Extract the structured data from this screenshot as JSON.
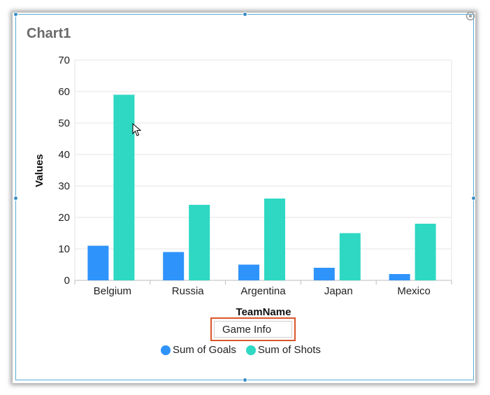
{
  "chart_title": "Chart1",
  "legend_title": "Game Info",
  "colors": {
    "goals": "#2e93fa",
    "shots": "#2ed8c3",
    "grid": "#e6e6e6",
    "selection": "#d9562b"
  },
  "chart_data": {
    "type": "bar",
    "title": "Chart1",
    "xlabel": "TeamName",
    "ylabel": "Values",
    "ylim": [
      0,
      70
    ],
    "yticks": [
      0,
      10,
      20,
      30,
      40,
      50,
      60,
      70
    ],
    "categories": [
      "Belgium",
      "Russia",
      "Argentina",
      "Japan",
      "Mexico"
    ],
    "series": [
      {
        "name": "Sum of Goals",
        "values": [
          11,
          9,
          5,
          4,
          2
        ]
      },
      {
        "name": "Sum of Shots",
        "values": [
          59,
          24,
          26,
          15,
          18
        ]
      }
    ],
    "legend_position": "bottom",
    "grid": true
  }
}
